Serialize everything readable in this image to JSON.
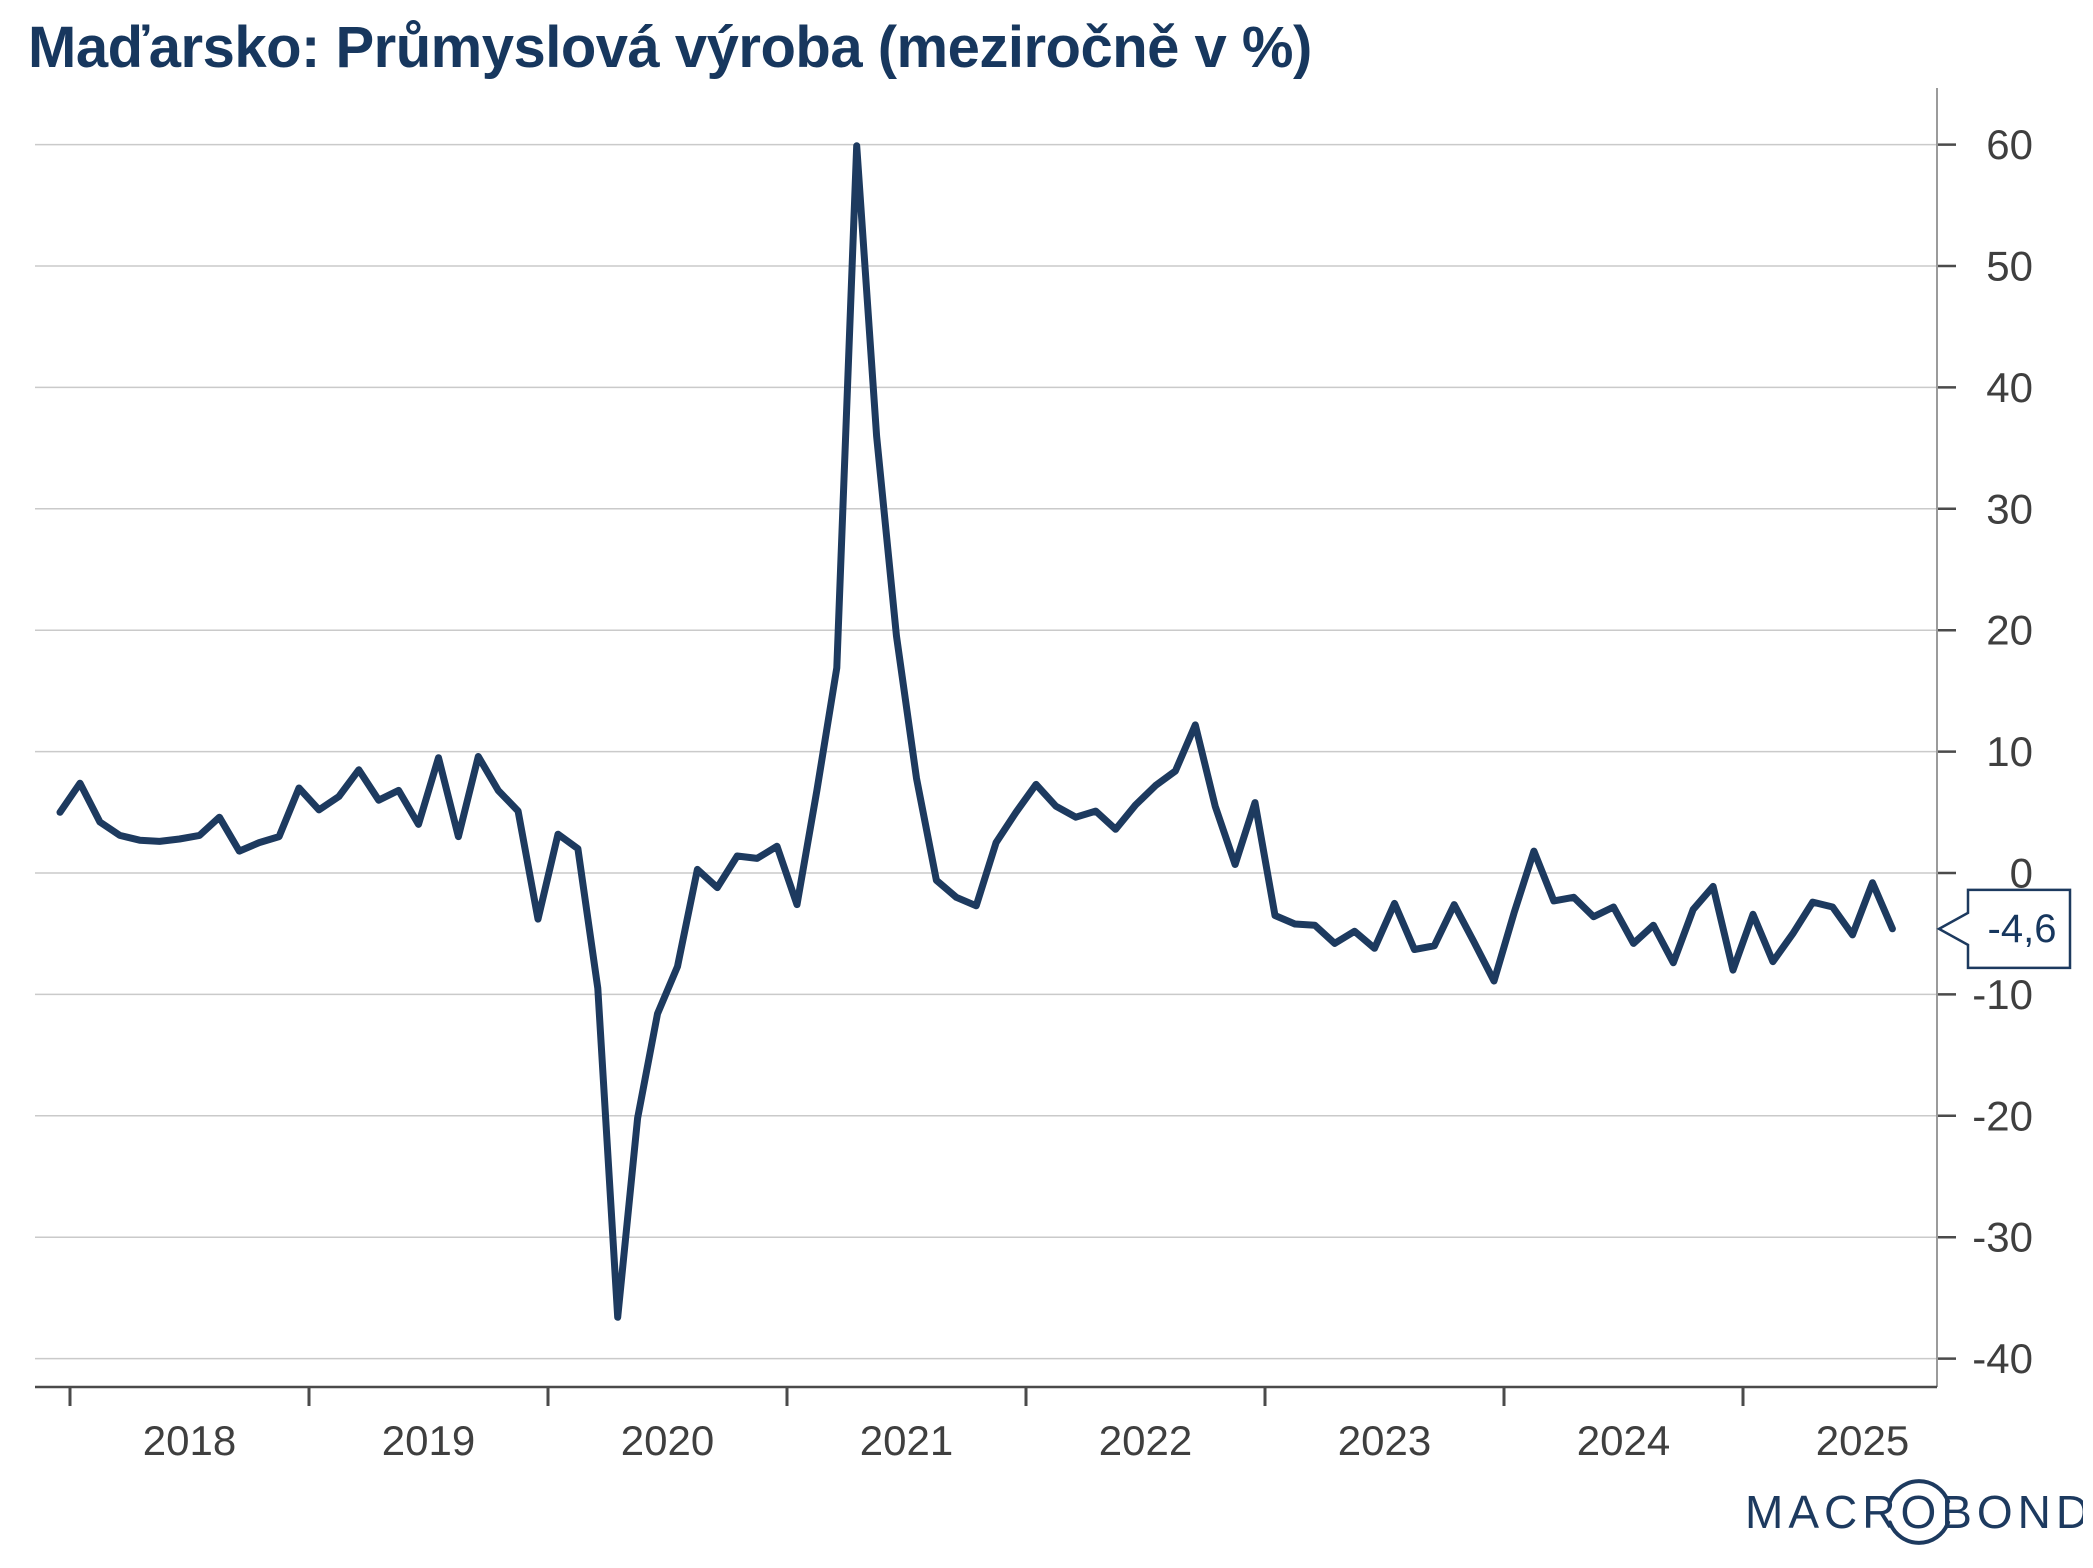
{
  "title": "Maďarsko: Průmyslová výroba (meziročně v %)",
  "logo_text": "MACROBOND",
  "last_value_label": "-4,6",
  "colors": {
    "title": "#17375e",
    "line": "#1d3a5f",
    "grid": "#cacaca",
    "bottom_axis": "#4a4a4a",
    "right_axis": "#9b9b9b",
    "tick_label": "#3f3f3f",
    "callout_border": "#1d3a5f",
    "callout_fill": "#ffffff"
  },
  "y_axis": {
    "ticks": [
      60,
      50,
      40,
      30,
      20,
      10,
      0,
      -10,
      -20,
      -30,
      -40
    ]
  },
  "x_axis": {
    "year_labels": [
      "2018",
      "2019",
      "2020",
      "2021",
      "2022",
      "2023",
      "2024",
      "2025"
    ]
  },
  "chart_data": {
    "type": "line",
    "title": "Maďarsko: Průmyslová výroba (meziročně v %)",
    "unit": "%",
    "frequency": "monthly",
    "series_start": "2017-12",
    "values": [
      5.0,
      7.4,
      4.2,
      3.1,
      2.7,
      2.6,
      2.8,
      3.1,
      4.6,
      1.8,
      2.5,
      3.0,
      7.0,
      5.2,
      6.3,
      8.5,
      6.0,
      6.8,
      4.0,
      9.5,
      3.0,
      9.6,
      6.8,
      5.1,
      -3.8,
      3.2,
      2.0,
      -9.5,
      -36.6,
      -20.2,
      -11.6,
      -7.7,
      0.3,
      -1.2,
      1.4,
      1.2,
      2.2,
      -2.6,
      6.8,
      16.9,
      59.9,
      36.0,
      19.5,
      7.8,
      -0.6,
      -2.0,
      -2.7,
      2.5,
      5.0,
      7.3,
      5.5,
      4.6,
      5.1,
      3.6,
      5.6,
      7.2,
      8.4,
      12.2,
      5.5,
      0.7,
      5.8,
      -3.5,
      -4.2,
      -4.3,
      -5.8,
      -4.8,
      -6.2,
      -2.5,
      -6.3,
      -6.0,
      -2.6,
      -5.7,
      -8.9,
      -3.3,
      1.8,
      -2.3,
      -2.0,
      -3.6,
      -2.8,
      -5.8,
      -4.3,
      -7.4,
      -3.0,
      -1.1,
      -8.0,
      -3.4,
      -7.3,
      -5.0,
      -2.4,
      -2.8,
      -5.1,
      -0.8,
      -4.6
    ],
    "last_value": -4.6,
    "last_value_label": "-4,6",
    "ylim": [
      -40,
      60
    ],
    "y_ticks": [
      60,
      50,
      40,
      30,
      20,
      10,
      0,
      -10,
      -20,
      -30,
      -40
    ],
    "x_tick_years": [
      2018,
      2019,
      2020,
      2021,
      2022,
      2023,
      2024,
      2025
    ],
    "grid": true,
    "legend": false
  }
}
